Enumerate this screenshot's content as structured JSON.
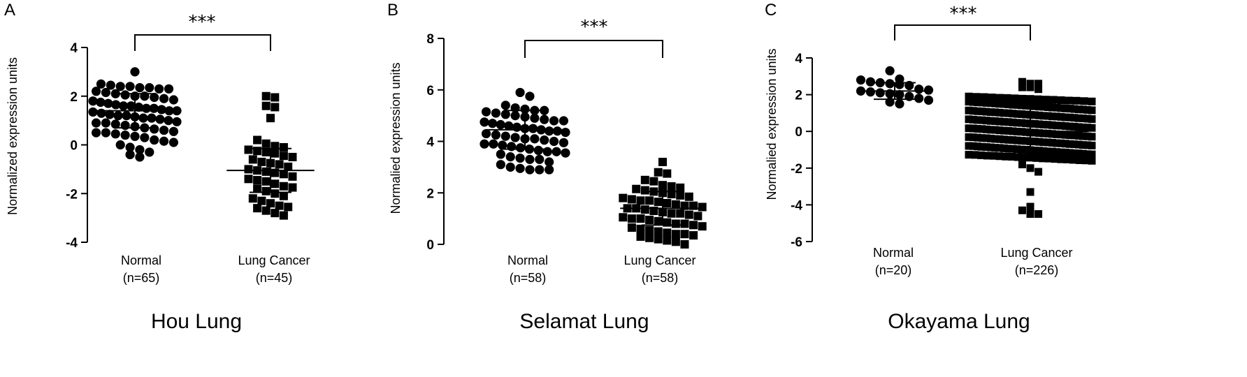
{
  "chart_data": [
    {
      "type": "scatter",
      "panel": "A",
      "title": "Hou Lung",
      "ylabel": "Normalized expression units",
      "ylim": [
        -4,
        4
      ],
      "yticks": [
        -4,
        -2,
        0,
        2,
        4
      ],
      "significance": "***",
      "groups": [
        {
          "label": "Normal",
          "n_label": "(n=65)",
          "marker": "circle",
          "mean": 1.4,
          "sd": 0.7,
          "values": [
            3.0,
            2.5,
            2.45,
            2.4,
            2.4,
            2.35,
            2.35,
            2.3,
            2.3,
            2.2,
            2.15,
            2.1,
            2.05,
            2.0,
            2.0,
            1.95,
            1.9,
            1.85,
            1.8,
            1.75,
            1.7,
            1.65,
            1.6,
            1.6,
            1.55,
            1.5,
            1.5,
            1.45,
            1.4,
            1.4,
            1.35,
            1.3,
            1.25,
            1.2,
            1.2,
            1.15,
            1.1,
            1.1,
            1.05,
            1.0,
            0.95,
            0.9,
            0.9,
            0.85,
            0.8,
            0.75,
            0.7,
            0.65,
            0.6,
            0.55,
            0.5,
            0.5,
            0.45,
            0.4,
            0.35,
            0.3,
            0.2,
            0.15,
            0.1,
            0.0,
            -0.1,
            -0.2,
            -0.3,
            -0.4,
            -0.5
          ]
        },
        {
          "label": "Lung Cancer",
          "n_label": "(n=45)",
          "marker": "square",
          "mean": -1.05,
          "sd": 0.9,
          "values": [
            2.0,
            1.95,
            1.6,
            1.55,
            1.1,
            0.2,
            0.05,
            -0.05,
            -0.1,
            -0.2,
            -0.25,
            -0.3,
            -0.35,
            -0.45,
            -0.5,
            -0.6,
            -0.7,
            -0.75,
            -0.8,
            -0.9,
            -1.0,
            -1.05,
            -1.1,
            -1.15,
            -1.2,
            -1.3,
            -1.4,
            -1.45,
            -1.5,
            -1.6,
            -1.7,
            -1.75,
            -1.8,
            -1.9,
            -2.0,
            -2.1,
            -2.2,
            -2.3,
            -2.4,
            -2.5,
            -2.55,
            -2.6,
            -2.7,
            -2.8,
            -2.9
          ]
        }
      ]
    },
    {
      "type": "scatter",
      "panel": "B",
      "title": "Selamat Lung",
      "ylabel": "Normalied expression units",
      "ylim": [
        0,
        8
      ],
      "yticks": [
        0,
        2,
        4,
        6,
        8
      ],
      "significance": "***",
      "groups": [
        {
          "label": "Normal",
          "n_label": "(n=58)",
          "marker": "circle",
          "mean": 4.45,
          "sd": 0.75,
          "values": [
            5.9,
            5.75,
            5.4,
            5.3,
            5.25,
            5.2,
            5.2,
            5.15,
            5.1,
            5.05,
            5.0,
            4.95,
            4.9,
            4.85,
            4.8,
            4.8,
            4.75,
            4.7,
            4.65,
            4.6,
            4.55,
            4.5,
            4.5,
            4.45,
            4.4,
            4.4,
            4.35,
            4.3,
            4.25,
            4.2,
            4.15,
            4.1,
            4.1,
            4.05,
            4.0,
            3.95,
            3.9,
            3.9,
            3.85,
            3.8,
            3.75,
            3.7,
            3.65,
            3.6,
            3.6,
            3.55,
            3.5,
            3.4,
            3.35,
            3.3,
            3.3,
            3.2,
            3.1,
            3.0,
            2.95,
            2.9,
            2.9,
            2.9
          ]
        },
        {
          "label": "Lung Cancer",
          "n_label": "(n=58)",
          "marker": "square",
          "mean": 1.4,
          "sd": 0.65,
          "values": [
            3.2,
            2.8,
            2.75,
            2.5,
            2.45,
            2.3,
            2.25,
            2.2,
            2.15,
            2.1,
            2.05,
            2.0,
            1.95,
            1.9,
            1.85,
            1.8,
            1.75,
            1.7,
            1.7,
            1.65,
            1.6,
            1.55,
            1.5,
            1.5,
            1.45,
            1.4,
            1.4,
            1.35,
            1.3,
            1.25,
            1.2,
            1.2,
            1.15,
            1.1,
            1.05,
            1.0,
            1.0,
            0.95,
            0.9,
            0.85,
            0.8,
            0.8,
            0.75,
            0.7,
            0.65,
            0.6,
            0.55,
            0.5,
            0.45,
            0.4,
            0.4,
            0.35,
            0.3,
            0.25,
            0.2,
            0.15,
            0.1,
            0.0
          ]
        }
      ]
    },
    {
      "type": "scatter",
      "panel": "C",
      "title": "Okayama Lung",
      "ylabel": "Normalied expression units",
      "ylim": [
        -6,
        4
      ],
      "yticks": [
        -6,
        -4,
        -2,
        0,
        2,
        4
      ],
      "significance": "***",
      "groups": [
        {
          "label": "Normal",
          "n_label": "(n=20)",
          "marker": "circle",
          "mean": 2.2,
          "sd": 0.45,
          "values": [
            3.3,
            2.85,
            2.8,
            2.7,
            2.65,
            2.6,
            2.55,
            2.5,
            2.3,
            2.25,
            2.2,
            2.15,
            2.1,
            2.05,
            2.0,
            1.9,
            1.8,
            1.7,
            1.6,
            1.5
          ]
        },
        {
          "label": "Lung Cancer",
          "n_label": "(n=226)",
          "marker": "square",
          "mean": 0.0,
          "sd": 1.4,
          "values": []
        }
      ]
    }
  ],
  "lung_cancer_c_extra": {
    "outliers": [
      2.7,
      2.6,
      2.6,
      2.4,
      2.4,
      2.3,
      -1.8,
      -2.0,
      -2.2,
      -3.3,
      -4.1,
      -4.3,
      -4.5,
      -4.5
    ],
    "bulk_min": -1.6,
    "bulk_max": 1.9,
    "bulk_count": 212
  }
}
